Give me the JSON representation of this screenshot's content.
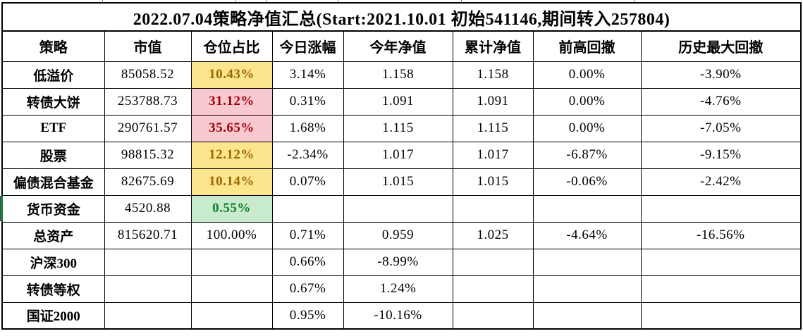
{
  "title": "2022.07.04策略净值汇总(Start:2021.10.01 初始541146,期间转入257804)",
  "columns": [
    "策略",
    "市值",
    "仓位占比",
    "今日涨幅",
    "今年净值",
    "累计净值",
    "前高回撤",
    "历史最大回撤"
  ],
  "rows": [
    {
      "strategy": "低溢价",
      "market_value": "85058.52",
      "position_pct": "10.43%",
      "today_change": "3.14%",
      "ytd_nav": "1.158",
      "cum_nav": "1.158",
      "prev_high_drawdown": "0.00%",
      "max_drawdown": "-3.90%"
    },
    {
      "strategy": "转债大饼",
      "market_value": "253788.73",
      "position_pct": "31.12%",
      "today_change": "0.31%",
      "ytd_nav": "1.091",
      "cum_nav": "1.091",
      "prev_high_drawdown": "0.00%",
      "max_drawdown": "-4.76%"
    },
    {
      "strategy": "ETF",
      "market_value": "290761.57",
      "position_pct": "35.65%",
      "today_change": "1.68%",
      "ytd_nav": "1.115",
      "cum_nav": "1.115",
      "prev_high_drawdown": "0.00%",
      "max_drawdown": "-7.05%"
    },
    {
      "strategy": "股票",
      "market_value": "98815.32",
      "position_pct": "12.12%",
      "today_change": "-2.34%",
      "ytd_nav": "1.017",
      "cum_nav": "1.017",
      "prev_high_drawdown": "-6.87%",
      "max_drawdown": "-9.15%"
    },
    {
      "strategy": "偏债混合基金",
      "market_value": "82675.69",
      "position_pct": "10.14%",
      "today_change": "0.07%",
      "ytd_nav": "1.015",
      "cum_nav": "1.015",
      "prev_high_drawdown": "-0.06%",
      "max_drawdown": "-2.42%"
    },
    {
      "strategy": "货币资金",
      "market_value": "4520.88",
      "position_pct": "0.55%",
      "today_change": "",
      "ytd_nav": "",
      "cum_nav": "",
      "prev_high_drawdown": "",
      "max_drawdown": ""
    },
    {
      "strategy": "总资产",
      "market_value": "815620.71",
      "position_pct": "100.00%",
      "today_change": "0.71%",
      "ytd_nav": "0.959",
      "cum_nav": "1.025",
      "prev_high_drawdown": "-4.64%",
      "max_drawdown": "-16.56%"
    },
    {
      "strategy": "沪深300",
      "market_value": "",
      "position_pct": "",
      "today_change": "0.66%",
      "ytd_nav": "-8.99%",
      "cum_nav": "",
      "prev_high_drawdown": "",
      "max_drawdown": ""
    },
    {
      "strategy": "转债等权",
      "market_value": "",
      "position_pct": "",
      "today_change": "0.67%",
      "ytd_nav": "1.24%",
      "cum_nav": "",
      "prev_high_drawdown": "",
      "max_drawdown": ""
    },
    {
      "strategy": "国证2000",
      "market_value": "",
      "position_pct": "",
      "today_change": "0.95%",
      "ytd_nav": "-10.16%",
      "cum_nav": "",
      "prev_high_drawdown": "",
      "max_drawdown": ""
    }
  ],
  "colors": {
    "neutral_bg": "#FBE58D",
    "neutral_text": "#9C6500",
    "bad_bg": "#F9C9D0",
    "bad_text": "#9C0006",
    "good_bg": "#C8EBCE",
    "good_text": "#0E7C2E",
    "marker": "#217346",
    "grid": "#000000"
  }
}
